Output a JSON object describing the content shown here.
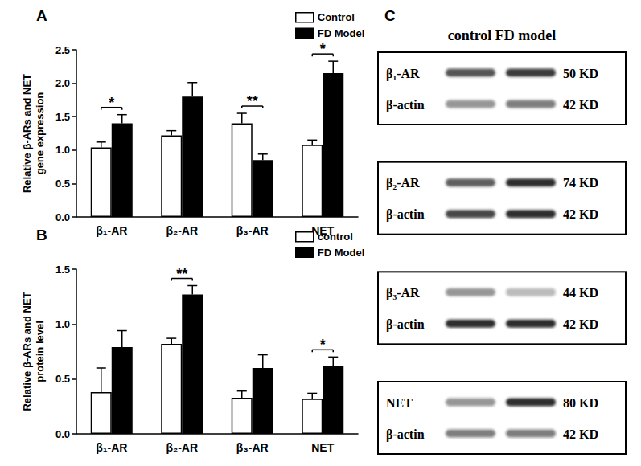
{
  "chart_data": [
    {
      "type": "bar",
      "title": "A",
      "y_label": "Relative β-ARs and NET\ngene expression",
      "categories": [
        "β₁-AR",
        "β₂-AR",
        "β₃-AR",
        "NET"
      ],
      "series": [
        {
          "name": "Control",
          "color": "#ffffff",
          "values": [
            1.04,
            1.22,
            1.4,
            1.08
          ],
          "errors": [
            0.08,
            0.07,
            0.15,
            0.07
          ]
        },
        {
          "name": "FD Model",
          "color": "#000000",
          "values": [
            1.4,
            1.8,
            0.85,
            2.15
          ],
          "errors": [
            0.13,
            0.21,
            0.09,
            0.18
          ]
        }
      ],
      "ylim": [
        0,
        2.5
      ],
      "yticks": [
        {
          "value": 0,
          "label": "0.0"
        },
        0.5,
        {
          "value": 1,
          "label": "1.0"
        },
        1.5,
        {
          "value": 2,
          "label": "2.0"
        },
        2.5
      ],
      "grid": false,
      "legend": "top-right",
      "annotations": [
        {
          "category": "β₁-AR",
          "text": "*"
        },
        {
          "category": "β₃-AR",
          "text": "**"
        },
        {
          "category": "NET",
          "text": "*"
        }
      ]
    },
    {
      "type": "bar",
      "title": "B",
      "y_label": "Relative β-ARs and NET\nprotein level",
      "categories": [
        "β₁-AR",
        "β₂-AR",
        "β₃-AR",
        "NET"
      ],
      "series": [
        {
          "name": "control",
          "color": "#ffffff",
          "values": [
            0.38,
            0.82,
            0.33,
            0.32
          ],
          "errors": [
            0.22,
            0.05,
            0.06,
            0.05
          ]
        },
        {
          "name": "FD Model",
          "color": "#000000",
          "values": [
            0.79,
            1.27,
            0.6,
            0.62
          ],
          "errors": [
            0.15,
            0.08,
            0.12,
            0.08
          ]
        }
      ],
      "ylim": [
        0,
        1.5
      ],
      "yticks": [
        {
          "value": 0,
          "label": "0.0"
        },
        0.5,
        {
          "value": 1,
          "label": "1.0"
        },
        1.5
      ],
      "grid": false,
      "legend": "top-right",
      "annotations": [
        {
          "category": "β₂-AR",
          "text": "**"
        },
        {
          "category": "NET",
          "text": "*"
        }
      ]
    }
  ],
  "blot": {
    "title": "C",
    "header": "control FD model",
    "boxes": [
      {
        "rows": [
          {
            "label": "β₁-AR",
            "size": "50 KD",
            "intensity": [
              0.75,
              0.85
            ]
          },
          {
            "label": "β-actin",
            "size": "42 KD",
            "intensity": [
              0.45,
              0.55
            ]
          }
        ]
      },
      {
        "rows": [
          {
            "label": "β₂-AR",
            "size": "74 KD",
            "intensity": [
              0.7,
              0.9
            ]
          },
          {
            "label": "β-actin",
            "size": "42 KD",
            "intensity": [
              0.8,
              0.9
            ]
          }
        ]
      },
      {
        "rows": [
          {
            "label": "β₃-AR",
            "size": "44 KD",
            "intensity": [
              0.45,
              0.3
            ]
          },
          {
            "label": "β-actin",
            "size": "42 KD",
            "intensity": [
              0.9,
              0.9
            ]
          }
        ]
      },
      {
        "rows": [
          {
            "label": "NET",
            "size": "80 KD",
            "intensity": [
              0.45,
              0.9
            ]
          },
          {
            "label": "β-actin",
            "size": "42 KD",
            "intensity": [
              0.55,
              0.55
            ]
          }
        ]
      }
    ]
  }
}
